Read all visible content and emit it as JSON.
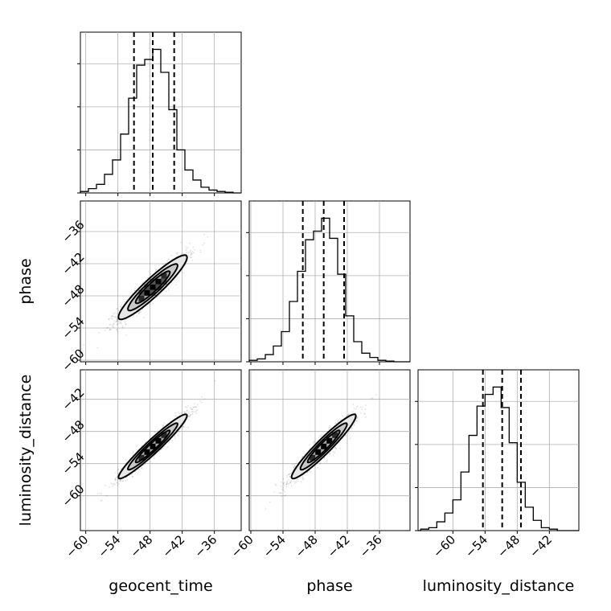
{
  "chart_data": {
    "type": "corner",
    "parameters": [
      "geocent_time",
      "phase",
      "luminosity_distance"
    ],
    "axis_labels": {
      "x": [
        "geocent_time",
        "phase",
        "luminosity_distance"
      ],
      "y": [
        "phase",
        "luminosity_distance"
      ]
    },
    "ranges": {
      "geocent_time": [
        -61,
        -31
      ],
      "phase": [
        -60.3,
        -30.3
      ],
      "luminosity_distance": [
        -66.5,
        -36.5
      ]
    },
    "ticks": {
      "geocent_time": [
        -60,
        -54,
        -48,
        -42,
        -36
      ],
      "phase": [
        -60,
        -54,
        -48,
        -42,
        -36
      ],
      "luminosity_distance": [
        -60,
        -54,
        -48,
        -42
      ]
    },
    "tick_labels": {
      "geocent_time": [
        "−60",
        "−54",
        "−48",
        "−42",
        "−36"
      ],
      "phase": [
        "−60",
        "−54",
        "−48",
        "−42",
        "−36"
      ],
      "luminosity_distance": [
        "−60",
        "−54",
        "−48",
        "−42"
      ]
    },
    "y_tick_values": {
      "phase": [
        -60,
        -54,
        -48,
        -42,
        -36
      ],
      "luminosity_distance": [
        -60,
        -54,
        -48,
        -42
      ]
    },
    "y_tick_labels": {
      "phase": [
        "−60",
        "−54",
        "−48",
        "−42",
        "−36"
      ],
      "luminosity_distance": [
        "−60",
        "−54",
        "−48",
        "−42"
      ]
    },
    "histograms": [
      {
        "parameter": "geocent_time",
        "bin_edges": [
          -62.5,
          -61,
          -59.5,
          -58,
          -56.5,
          -55,
          -53.5,
          -52,
          -50.5,
          -49,
          -47.5,
          -46,
          -44.5,
          -43,
          -41.5,
          -40,
          -38.5,
          -37,
          -35.5,
          -34,
          -32.5,
          -31
        ],
        "counts": [
          0,
          0.01,
          0.03,
          0.06,
          0.13,
          0.23,
          0.41,
          0.66,
          0.89,
          0.93,
          1.0,
          0.84,
          0.58,
          0.3,
          0.16,
          0.09,
          0.04,
          0.02,
          0.01,
          0.005,
          0.0
        ],
        "quantiles": [
          -51.0,
          -47.5,
          -43.5
        ]
      },
      {
        "parameter": "phase",
        "bin_edges": [
          -61.8,
          -60.3,
          -58.8,
          -57.3,
          -55.8,
          -54.3,
          -52.8,
          -51.3,
          -49.8,
          -48.3,
          -46.8,
          -45.3,
          -43.8,
          -42.3,
          -40.8,
          -39.3,
          -37.8,
          -36.3,
          -34.8,
          -33.3,
          -31.8,
          -30.3
        ],
        "counts": [
          0,
          0.01,
          0.02,
          0.05,
          0.11,
          0.21,
          0.42,
          0.63,
          0.85,
          0.91,
          1.0,
          0.86,
          0.61,
          0.32,
          0.14,
          0.06,
          0.03,
          0.01,
          0.005,
          0.0,
          0.0
        ],
        "quantiles": [
          -50.3,
          -46.4,
          -42.6
        ]
      },
      {
        "parameter": "luminosity_distance",
        "bin_edges": [
          -67.5,
          -66,
          -64.5,
          -63,
          -61.5,
          -60,
          -58.5,
          -57,
          -55.5,
          -54,
          -52.5,
          -51,
          -49.5,
          -48,
          -46.5,
          -45,
          -43.5,
          -42,
          -40.5,
          -39,
          -37.5,
          -36
        ],
        "counts": [
          0,
          0.01,
          0.02,
          0.06,
          0.12,
          0.21,
          0.4,
          0.65,
          0.85,
          0.93,
          0.98,
          0.84,
          0.6,
          0.33,
          0.16,
          0.07,
          0.02,
          0.01,
          0.0,
          0.0,
          0.0
        ],
        "quantiles": [
          -54.4,
          -50.8,
          -47.3
        ]
      }
    ],
    "pairs": [
      {
        "x": "geocent_time",
        "y": "phase",
        "mean": [
          -47.5,
          -46.4
        ],
        "sd": [
          3.2,
          3.0
        ],
        "corr": 0.93
      },
      {
        "x": "geocent_time",
        "y": "luminosity_distance",
        "mean": [
          -47.5,
          -50.8
        ],
        "sd": [
          3.2,
          3.0
        ],
        "corr": 0.96
      },
      {
        "x": "phase",
        "y": "luminosity_distance",
        "mean": [
          -46.4,
          -50.8
        ],
        "sd": [
          3.0,
          3.0
        ],
        "corr": 0.95
      }
    ],
    "grid": true,
    "colors": {
      "hist": "#000000",
      "scatter": "#000000",
      "grid": "#b0b0b0"
    }
  }
}
